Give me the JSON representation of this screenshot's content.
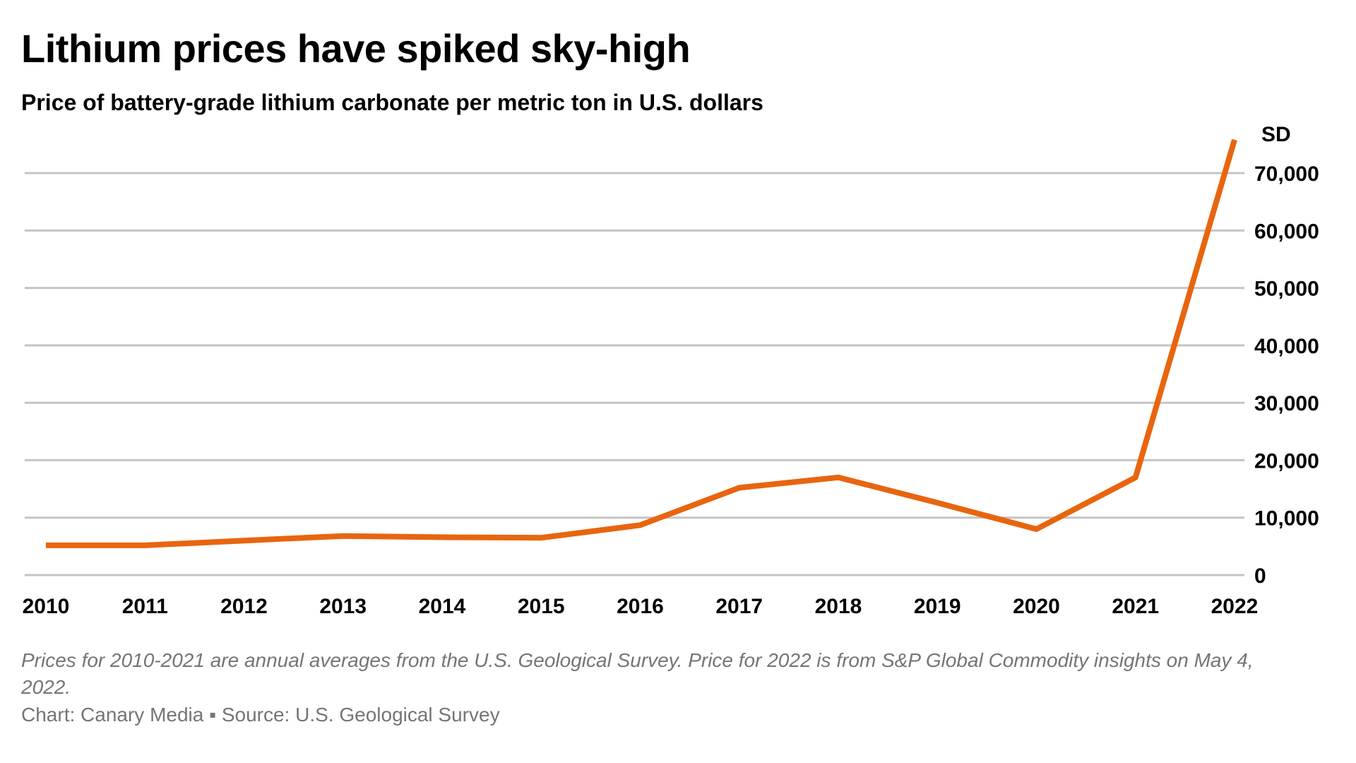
{
  "title": "Lithium prices have spiked sky-high",
  "subtitle": "Price of battery-grade lithium carbonate per metric ton in U.S. dollars",
  "footnote": "Prices for 2010-2021 are annual averages from the U.S. Geological Survey. Price for 2022 is from S&P Global  Commodity insights on May 4, 2022.",
  "credit": {
    "chart": "Chart: Canary Media",
    "separator": "▪",
    "source": "Source: U.S. Geological Survey"
  },
  "colors": {
    "line": "#E8650F",
    "grid": "#C4C4C4",
    "text": "#000000",
    "note": "#757575"
  },
  "chart_data": {
    "type": "line",
    "title": "Lithium prices have spiked sky-high",
    "subtitle": "Price of battery-grade lithium carbonate per metric ton in U.S. dollars",
    "xlabel": "",
    "ylabel": "",
    "y_unit_label": "SD",
    "categories": [
      "2010",
      "2011",
      "2012",
      "2013",
      "2014",
      "2015",
      "2016",
      "2017",
      "2018",
      "2019",
      "2020",
      "2021",
      "2022"
    ],
    "series": [
      {
        "name": "Price of battery-grade lithium carbonate",
        "values": [
          5180,
          5180,
          6000,
          6800,
          6600,
          6500,
          8700,
          15200,
          17000,
          12600,
          8000,
          17000,
          75800
        ]
      }
    ],
    "yticks": [
      0,
      10000,
      20000,
      30000,
      40000,
      50000,
      60000,
      70000
    ],
    "ytick_labels": [
      "0",
      "10,000",
      "20,000",
      "30,000",
      "40,000",
      "50,000",
      "60,000",
      "70,000"
    ],
    "ylim": [
      0,
      70000
    ],
    "grid": true,
    "y_axis_side": "right",
    "legend": "none"
  }
}
